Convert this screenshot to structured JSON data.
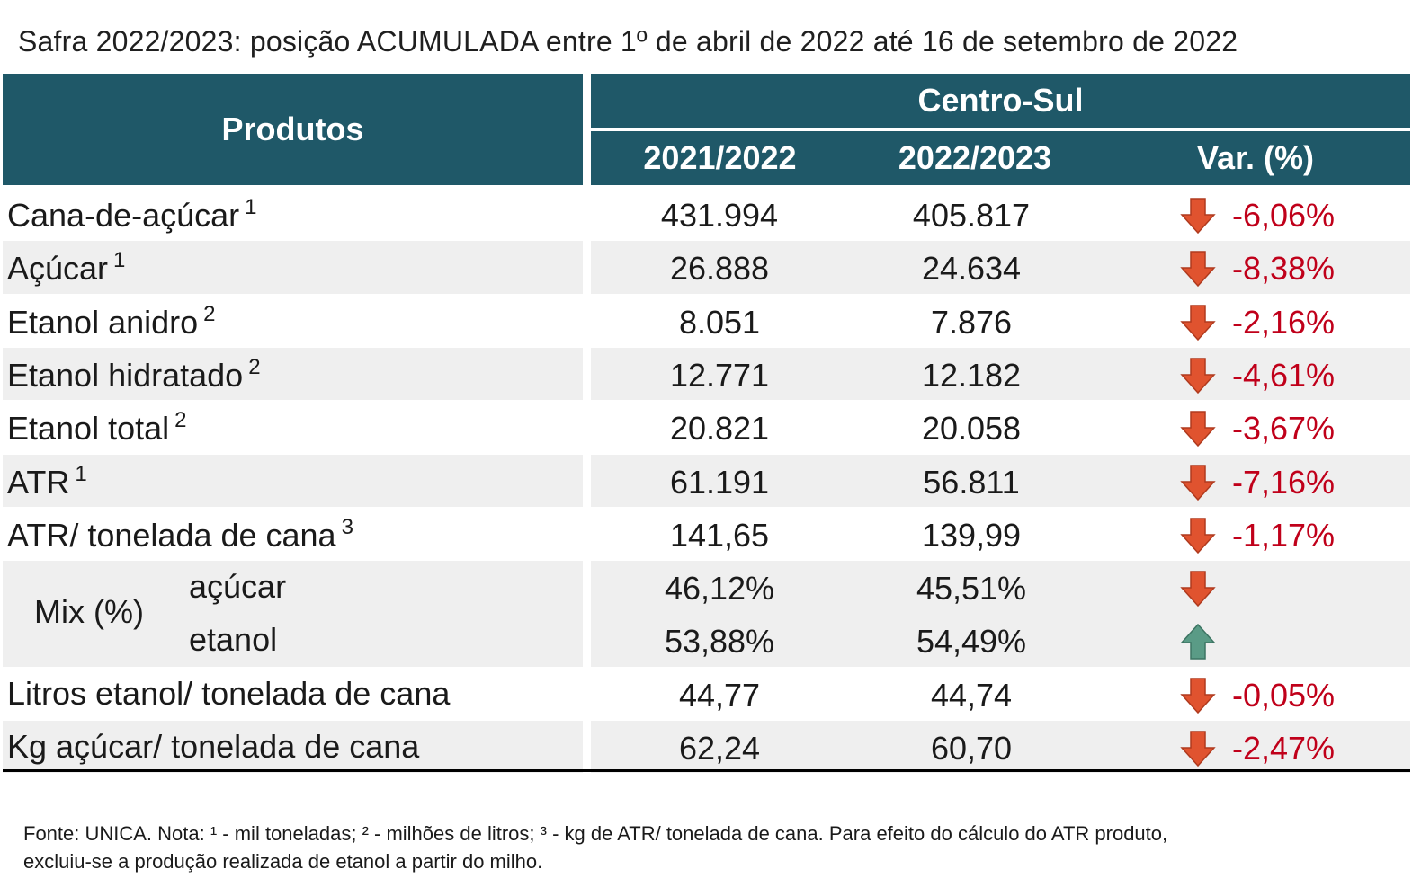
{
  "title": "Safra 2022/2023: posição ACUMULADA entre 1º de abril de 2022 até 16 de setembro de 2022",
  "header": {
    "produtos": "Produtos",
    "region": "Centro-Sul",
    "col1": "2021/2022",
    "col2": "2022/2023",
    "col3": "Var. (%)"
  },
  "rows": [
    {
      "label": "Cana-de-açúcar",
      "sup": "1",
      "v1": "431.994",
      "v2": "405.817",
      "var": "-6,06%",
      "dir": "down"
    },
    {
      "label": "Açúcar",
      "sup": "1",
      "v1": "26.888",
      "v2": "24.634",
      "var": "-8,38%",
      "dir": "down"
    },
    {
      "label": "Etanol anidro",
      "sup": "2",
      "v1": "8.051",
      "v2": "7.876",
      "var": "-2,16%",
      "dir": "down"
    },
    {
      "label": "Etanol hidratado",
      "sup": "2",
      "v1": "12.771",
      "v2": "12.182",
      "var": "-4,61%",
      "dir": "down"
    },
    {
      "label": "Etanol total",
      "sup": "2",
      "v1": "20.821",
      "v2": "20.058",
      "var": "-3,67%",
      "dir": "down"
    },
    {
      "label": "ATR",
      "sup": "1",
      "v1": "61.191",
      "v2": "56.811",
      "var": "-7,16%",
      "dir": "down"
    },
    {
      "label": "ATR/ tonelada de cana",
      "sup": "3",
      "v1": "141,65",
      "v2": "139,99",
      "var": "-1,17%",
      "dir": "down"
    }
  ],
  "mix": {
    "label": "Mix (%)",
    "acucar": {
      "label": "açúcar",
      "v1": "46,12%",
      "v2": "45,51%",
      "dir": "down"
    },
    "etanol": {
      "label": "etanol",
      "v1": "53,88%",
      "v2": "54,49%",
      "dir": "up"
    }
  },
  "rows2": [
    {
      "label": "Litros etanol/ tonelada de cana",
      "v1": "44,77",
      "v2": "44,74",
      "var": "-0,05%",
      "dir": "down"
    },
    {
      "label": "Kg açúcar/ tonelada de cana",
      "v1": "62,24",
      "v2": "60,70",
      "var": "-2,47%",
      "dir": "down"
    }
  ],
  "footnote": {
    "line1": "Fonte: UNICA. Nota: ¹ - mil toneladas; ² - milhões de litros; ³ - kg de ATR/ tonelada de cana. Para efeito do cálculo do ATR produto,",
    "line2": "excluiu-se a produção realizada de etanol a partir do milho."
  },
  "colors": {
    "header": "#1f5868",
    "negative": "#c0001a",
    "arrow_down": "#e0532f",
    "arrow_up": "#5a9b86",
    "shade": "#efefef"
  },
  "icons": {
    "down": "arrow-down-icon",
    "up": "arrow-up-icon"
  }
}
